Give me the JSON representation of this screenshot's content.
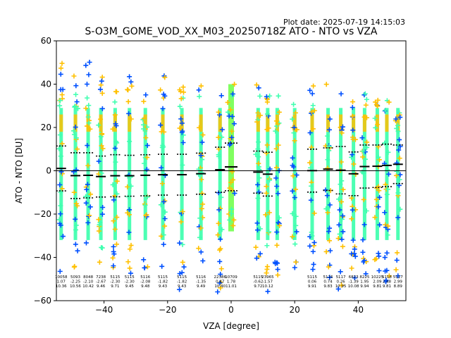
{
  "chart_data": {
    "type": "scatter",
    "title": "S-O3M_GOME_VOD_XX_M03_20250718Z ATO - NTO vs VZA",
    "plot_date": "Plot date: 2025-07-19 14:15:03",
    "xlabel": "VZA [degree]",
    "ylabel": "ATO - NTO [DU]",
    "xlim": [
      -55,
      55
    ],
    "ylim": [
      -60,
      60
    ],
    "xticks": [
      -40,
      -20,
      0,
      20,
      40
    ],
    "yticks": [
      -60,
      -40,
      -20,
      0,
      20,
      40,
      60
    ],
    "grid": false,
    "legend": "none",
    "colors": {
      "low_density": "#0050ff",
      "mid_density": "#40ffb0",
      "high_density": "#ffc000",
      "core": "#4dffb4",
      "center_core": "#80ff60",
      "mean_line": "#000000"
    },
    "columns": [
      {
        "vza": -53.5,
        "lo": -47,
        "hi": 50,
        "n": "10058",
        "mean": "1.07",
        "std": "10.36"
      },
      {
        "vza": -49.0,
        "lo": -45,
        "hi": 48,
        "n": "5093",
        "mean": "-2.25",
        "std": "10.56"
      },
      {
        "vza": -45.0,
        "lo": -45,
        "hi": 51,
        "n": "8048",
        "mean": "-2.10",
        "std": "10.42"
      },
      {
        "vza": -41.0,
        "lo": -46,
        "hi": 44,
        "n": "7238",
        "mean": "-2.67",
        "std": "9.46"
      },
      {
        "vza": -36.5,
        "lo": -45,
        "hi": 38,
        "n": "5115",
        "mean": "-2.30",
        "std": "9.71"
      },
      {
        "vza": -32.0,
        "lo": -48,
        "hi": 47,
        "n": "5115",
        "mean": "-2.30",
        "std": "9.45"
      },
      {
        "vza": -27.0,
        "lo": -47,
        "hi": 37,
        "n": "5116",
        "mean": "-2.08",
        "std": "9.48"
      },
      {
        "vza": -21.5,
        "lo": -45,
        "hi": 44,
        "n": "5115",
        "mean": "-1.82",
        "std": "9.43"
      },
      {
        "vza": -15.5,
        "lo": -56,
        "hi": 45,
        "n": "5115",
        "mean": "-1.82",
        "std": "9.43"
      },
      {
        "vza": -9.5,
        "lo": -47,
        "hi": 45,
        "n": "5116",
        "mean": "-1.35",
        "std": "9.49"
      },
      {
        "vza": -3.5,
        "lo": -56,
        "hi": 41,
        "n": "22386",
        "mean": "0.47",
        "std": "10.40"
      },
      {
        "vza": 0.0,
        "lo": -28,
        "hi": 42,
        "n": "10709",
        "mean": "1.78",
        "std": "11.01"
      },
      {
        "vza": 8.5,
        "lo": -45,
        "hi": 42,
        "n": "5115",
        "mean": "-0.62",
        "std": "9.72"
      },
      {
        "vza": 11.5,
        "lo": -56,
        "hi": 40,
        "n": "23965",
        "mean": "-1.57",
        "std": "10.12"
      },
      {
        "vza": 14.5,
        "lo": -50,
        "hi": 39,
        "n": "",
        "mean": "",
        "std": ""
      },
      {
        "vza": 20.0,
        "lo": -45,
        "hi": 33,
        "n": "",
        "mean": "",
        "std": ""
      },
      {
        "vza": 25.5,
        "lo": -47,
        "hi": 42,
        "n": "5115",
        "mean": "0.06",
        "std": "9.91"
      },
      {
        "vza": 30.5,
        "lo": -55,
        "hi": 40,
        "n": "5116",
        "mean": "0.74",
        "std": "9.83"
      },
      {
        "vza": 34.5,
        "lo": -55,
        "hi": 36,
        "n": "5117",
        "mean": "0.26",
        "std": "10.95"
      },
      {
        "vza": 38.5,
        "lo": -50,
        "hi": 36,
        "n": "6823",
        "mean": "-1.39",
        "std": "10.08"
      },
      {
        "vza": 42.0,
        "lo": -53,
        "hi": 36,
        "n": "8225",
        "mean": "1.95",
        "std": "9.94"
      },
      {
        "vza": 46.0,
        "lo": -50,
        "hi": 35,
        "n": "10225",
        "mean": "2.09",
        "std": "9.81"
      },
      {
        "vza": 49.0,
        "lo": -53,
        "hi": 38,
        "n": "5118",
        "mean": "2.48",
        "std": "9.81"
      },
      {
        "vza": 52.5,
        "lo": -50,
        "hi": 35,
        "n": "5117",
        "mean": "2.99",
        "std": "8.89"
      }
    ]
  }
}
